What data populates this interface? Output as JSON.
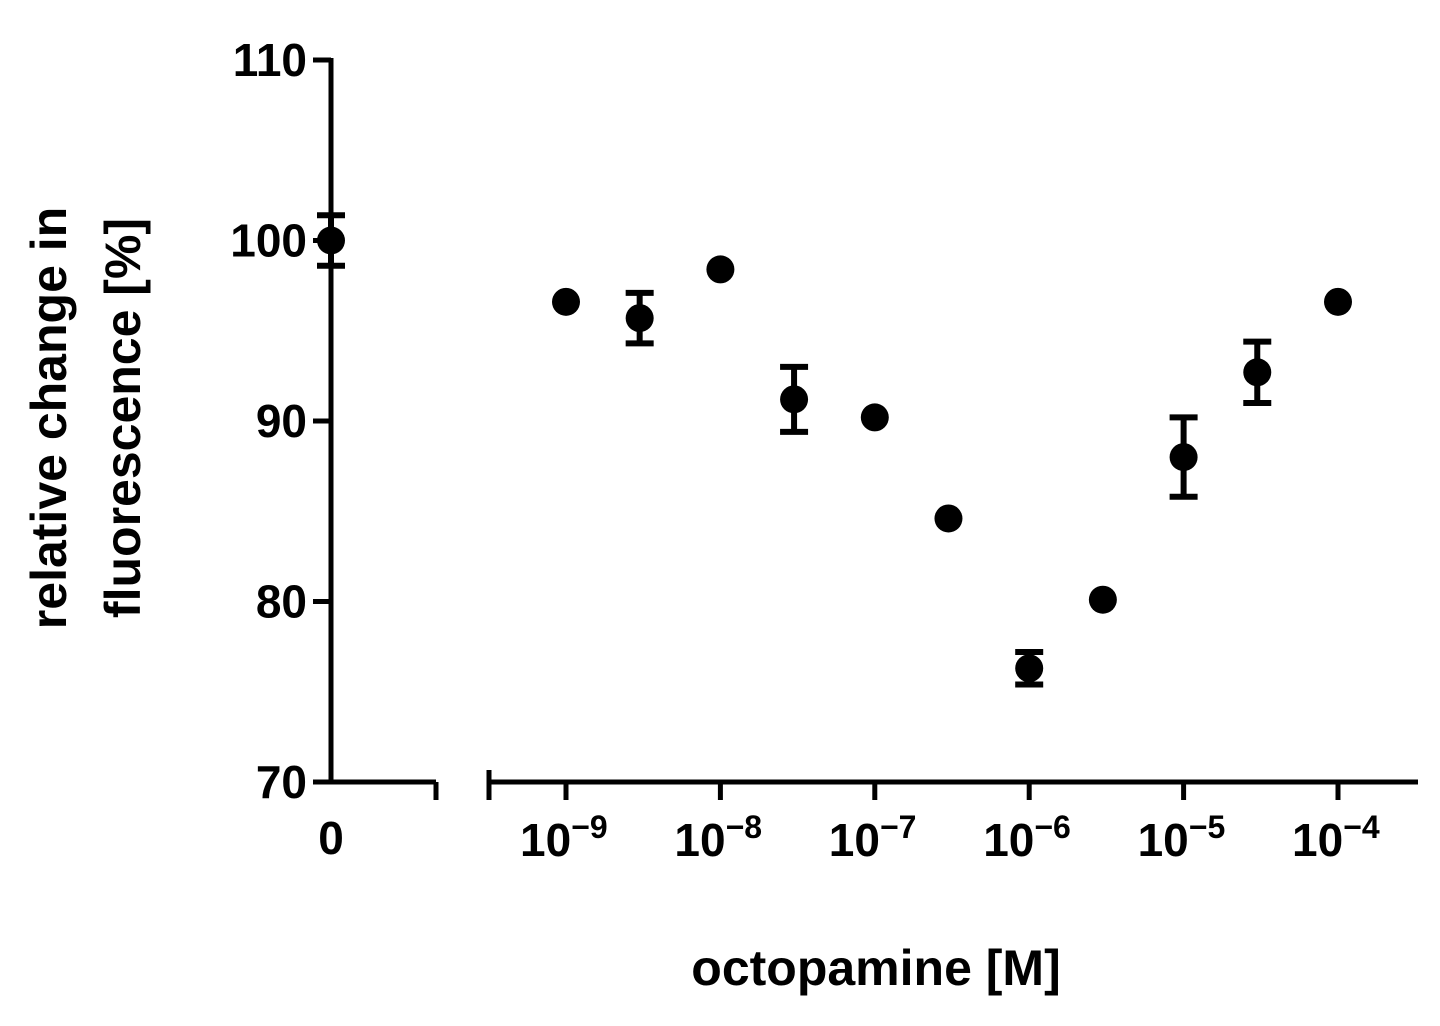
{
  "chart_data": {
    "type": "scatter",
    "title": "",
    "xlabel": "octopamine [M]",
    "ylabel_lines": [
      "relative change in",
      "fluorescence [%]"
    ],
    "x_scale": "log",
    "x_ticks": [
      {
        "value": 1e-09,
        "base": "10",
        "exp": "−9"
      },
      {
        "value": 1e-08,
        "base": "10",
        "exp": "−8"
      },
      {
        "value": 1e-07,
        "base": "10",
        "exp": "−7"
      },
      {
        "value": 1e-06,
        "base": "10",
        "exp": "−6"
      },
      {
        "value": 1e-05,
        "base": "10",
        "exp": "−5"
      },
      {
        "value": 0.0001,
        "base": "10",
        "exp": "−4"
      }
    ],
    "zero_tick_label": "0",
    "ylim": [
      70,
      110
    ],
    "y_ticks": [
      70,
      80,
      90,
      100,
      110
    ],
    "grid": false,
    "marker_color": "#000000",
    "control": {
      "x": 0,
      "y": 100.0,
      "err": 1.4
    },
    "points": [
      {
        "x": 1e-09,
        "y": 96.6,
        "err": null
      },
      {
        "x": 3e-09,
        "y": 95.7,
        "err": 1.4
      },
      {
        "x": 1e-08,
        "y": 98.4,
        "err": null
      },
      {
        "x": 3e-08,
        "y": 91.2,
        "err": 1.8
      },
      {
        "x": 1e-07,
        "y": 90.2,
        "err": null
      },
      {
        "x": 3e-07,
        "y": 84.6,
        "err": null
      },
      {
        "x": 1e-06,
        "y": 76.3,
        "err": 0.9
      },
      {
        "x": 3e-06,
        "y": 80.1,
        "err": null
      },
      {
        "x": 1e-05,
        "y": 88.0,
        "err": 2.2
      },
      {
        "x": 3e-05,
        "y": 92.7,
        "err": 1.7
      },
      {
        "x": 0.0001,
        "y": 96.6,
        "err": null
      }
    ]
  }
}
